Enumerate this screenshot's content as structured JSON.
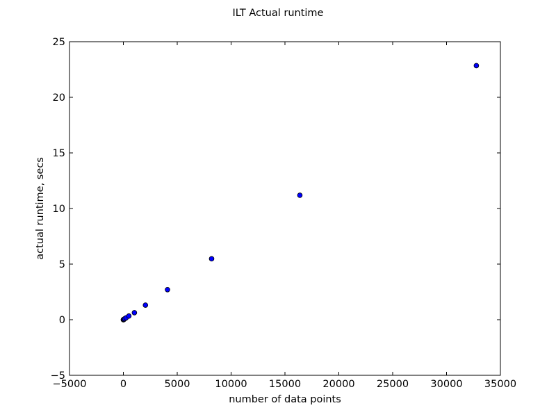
{
  "chart_data": {
    "type": "scatter",
    "title": "ILT Actual runtime",
    "xlabel": "number of data points",
    "ylabel": "actual runtime, secs",
    "xlim": [
      -5000,
      35000
    ],
    "ylim": [
      -5,
      25
    ],
    "xticks": [
      -5000,
      0,
      5000,
      10000,
      15000,
      20000,
      25000,
      30000,
      35000
    ],
    "yticks": [
      -5,
      0,
      5,
      10,
      15,
      20,
      25
    ],
    "grid": false,
    "marker_color": "#0000ff",
    "marker_edge_color": "#000000",
    "series": [
      {
        "x": [
          2,
          4,
          8,
          16,
          32,
          64,
          128,
          256,
          512,
          1024,
          2048,
          4096,
          8192,
          16384,
          32768
        ],
        "y": [
          0.0,
          0.0,
          0.0,
          0.01,
          0.02,
          0.04,
          0.09,
          0.17,
          0.33,
          0.63,
          1.31,
          2.7,
          5.48,
          11.19,
          22.85
        ]
      }
    ]
  }
}
